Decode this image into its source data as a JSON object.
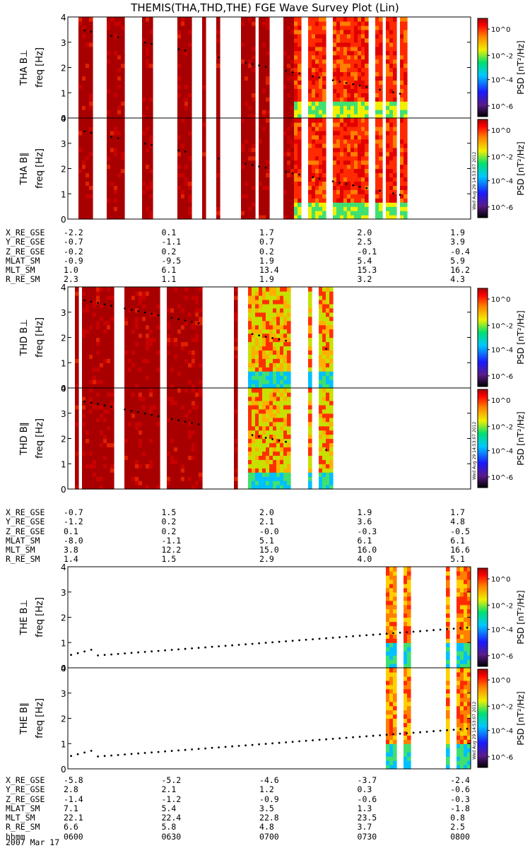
{
  "title": "THEMIS(THA,THD,THE) FGE Wave Survey Plot (Lin)",
  "stamp": "Wed Aug 29 14:53:07 2012",
  "colors": {
    "dark": "#a80000",
    "frame": "#000000",
    "dot": "#000000"
  },
  "chart_data": {
    "type": "heatmap",
    "date": "2007 Mar 17",
    "x_range_hhmm": [
      "0600",
      "0800"
    ],
    "y_range": [
      0,
      4
    ],
    "y_ticks": [
      "0",
      "1",
      "2",
      "3",
      "4"
    ],
    "cb_ticks": [
      "10^0",
      "10^-2",
      "10^-4",
      "10^-6"
    ],
    "cb_label": "PSD [nT²/Hz]",
    "probes": [
      {
        "name": "THA",
        "panels": [
          {
            "label": "THA B⊥",
            "ylabel": "freq [Hz]"
          },
          {
            "label": "THA B∥",
            "ylabel": "freq [Hz]"
          }
        ],
        "gaps": [
          [
            0,
            0.025
          ],
          [
            0.064,
            0.098
          ],
          [
            0.139,
            0.181
          ],
          [
            0.214,
            0.272
          ],
          [
            0.307,
            0.33
          ],
          [
            0.34,
            0.348
          ],
          [
            0.355,
            0.365
          ],
          [
            0.38,
            0.427
          ],
          [
            0.461,
            0.473
          ],
          [
            0.497,
            0.532
          ],
          [
            0.582,
            0.599
          ],
          [
            0.637,
            0.656
          ],
          [
            0.742,
            0.765
          ],
          [
            0.778,
            0.793
          ],
          [
            0.812,
            0.823
          ],
          [
            0.839,
            1.0
          ]
        ],
        "ephem": {
          "labels": [
            "X_RE_GSE",
            "Y_RE_GSE",
            "Z_RE_GSE",
            "MLAT_SM",
            "MLT_SM",
            "R_RE_SM"
          ],
          "cols": [
            [
              "-2.2",
              "-0.7",
              "-0.2",
              "-0.9",
              "1.0",
              "2.3"
            ],
            [
              "0.1",
              "-1.1",
              "0.2",
              "-9.5",
              "6.1",
              "1.1"
            ],
            [
              "1.7",
              "0.7",
              "0.2",
              "1.9",
              "13.4",
              "1.9"
            ],
            [
              "2.0",
              "2.5",
              "-0.1",
              "5.4",
              "15.3",
              "3.2"
            ],
            [
              "1.9",
              "3.9",
              "-0.4",
              "5.9",
              "16.2",
              "4.3"
            ]
          ]
        }
      },
      {
        "name": "THD",
        "panels": [
          {
            "label": "THD B⊥",
            "ylabel": "freq [Hz]"
          },
          {
            "label": "THD B∥",
            "ylabel": "freq [Hz]"
          }
        ],
        "gaps": [
          [
            0,
            0.015
          ],
          [
            0.023,
            0.032
          ],
          [
            0.115,
            0.139
          ],
          [
            0.229,
            0.247
          ],
          [
            0.332,
            0.41
          ],
          [
            0.423,
            0.443
          ],
          [
            0.555,
            0.593
          ],
          [
            0.605,
            0.625
          ],
          [
            0.658,
            1.0
          ]
        ],
        "ephem": {
          "labels": [
            "X_RE_GSE",
            "Y_RE_GSE",
            "Z_RE_GSE",
            "MLAT_SM",
            "MLT_SM",
            "R_RE_SM"
          ],
          "cols": [
            [
              "-0.7",
              "-1.2",
              "0.1",
              "-8.0",
              "3.8",
              "1.4"
            ],
            [
              "1.5",
              "0.2",
              "0.2",
              "-1.1",
              "12.2",
              "1.5"
            ],
            [
              "2.0",
              "2.1",
              "-0.0",
              "5.1",
              "15.0",
              "2.9"
            ],
            [
              "1.9",
              "3.6",
              "-0.3",
              "6.1",
              "16.0",
              "4.0"
            ],
            [
              "1.7",
              "4.8",
              "-0.5",
              "6.1",
              "16.6",
              "5.1"
            ]
          ]
        }
      },
      {
        "name": "THE",
        "panels": [
          {
            "label": "THE B⊥",
            "ylabel": "freq [Hz]"
          },
          {
            "label": "THE B∥",
            "ylabel": "freq [Hz]"
          }
        ],
        "gaps": [
          [
            0,
            0.788
          ],
          [
            0.813,
            0.83
          ],
          [
            0.85,
            0.94
          ],
          [
            0.945,
            0.963
          ]
        ],
        "ephem": {
          "labels": [
            "X_RE_GSE",
            "Y_RE_GSE",
            "Z_RE_GSE",
            "MLAT_SM",
            "MLT_SM",
            "R_RE_SM",
            "hhmm"
          ],
          "cols": [
            [
              "-5.8",
              "2.8",
              "-1.4",
              "7.1",
              "22.1",
              "6.6",
              "0600"
            ],
            [
              "-5.2",
              "2.1",
              "-1.2",
              "5.4",
              "22.4",
              "5.8",
              "0630"
            ],
            [
              "-4.6",
              "1.2",
              "-0.9",
              "3.5",
              "22.8",
              "4.8",
              "0700"
            ],
            [
              "-3.7",
              "0.3",
              "-0.6",
              "1.3",
              "23.5",
              "3.7",
              "0730"
            ],
            [
              "-2.4",
              "-0.6",
              "-0.3",
              "-1.8",
              "0.8",
              "2.5",
              "0800"
            ]
          ]
        }
      }
    ]
  }
}
